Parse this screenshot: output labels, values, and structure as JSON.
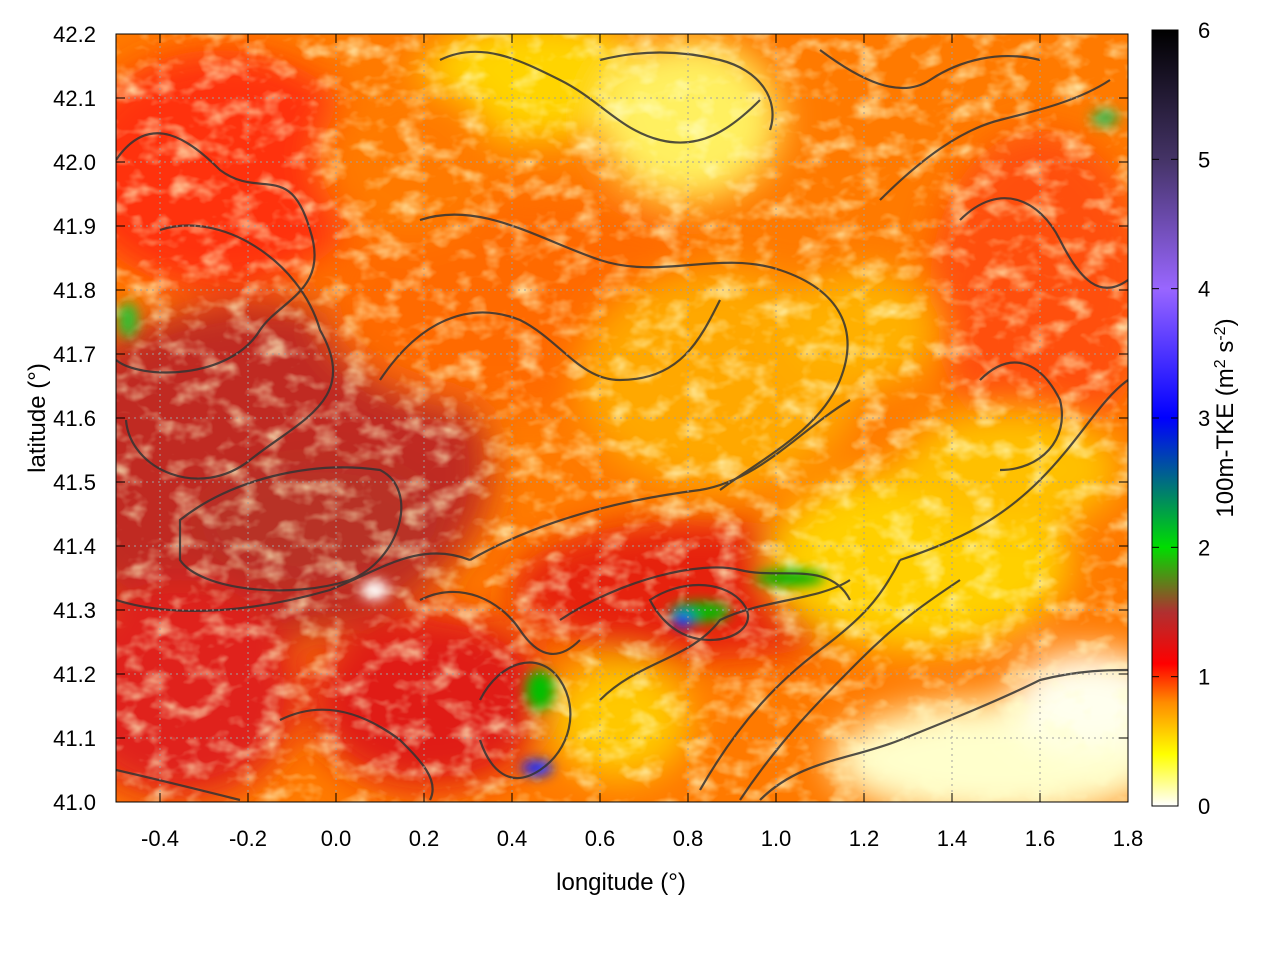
{
  "chart_data": {
    "type": "heatmap",
    "xlabel": "longitude (°)",
    "ylabel": "latitude (°)",
    "colorbar_label": "100m-TKE (m² s⁻²)",
    "colorbar_label_parts": {
      "main": "100m-TKE (m",
      "sup1": "2",
      "mid": " s",
      "sup2": "-2",
      "end": ")"
    },
    "xlim": [
      -0.5,
      1.8
    ],
    "ylim": [
      41.0,
      42.2
    ],
    "x_ticks": [
      "-0.4",
      "-0.2",
      "0.0",
      "0.2",
      "0.4",
      "0.6",
      "0.8",
      "1.0",
      "1.2",
      "1.4",
      "1.6",
      "1.8"
    ],
    "x_tick_values": [
      -0.4,
      -0.2,
      0.0,
      0.2,
      0.4,
      0.6,
      0.8,
      1.0,
      1.2,
      1.4,
      1.6,
      1.8
    ],
    "y_ticks": [
      "41.0",
      "41.1",
      "41.2",
      "41.3",
      "41.4",
      "41.5",
      "41.6",
      "41.7",
      "41.8",
      "41.9",
      "42.0",
      "42.1",
      "42.2"
    ],
    "y_tick_values": [
      41.0,
      41.1,
      41.2,
      41.3,
      41.4,
      41.5,
      41.6,
      41.7,
      41.8,
      41.9,
      42.0,
      42.1,
      42.2
    ],
    "colorbar_ticks": [
      "0",
      "1",
      "2",
      "3",
      "4",
      "5",
      "6"
    ],
    "colorbar_tick_values": [
      0,
      1,
      2,
      3,
      4,
      5,
      6
    ],
    "colorbar_range": [
      0,
      6
    ],
    "colormap": [
      {
        "value": 0.0,
        "color": "#ffffff"
      },
      {
        "value": 0.4,
        "color": "#ffff00"
      },
      {
        "value": 0.8,
        "color": "#ff8c00"
      },
      {
        "value": 1.1,
        "color": "#ff0000"
      },
      {
        "value": 1.5,
        "color": "#b03030"
      },
      {
        "value": 2.0,
        "color": "#00dd00"
      },
      {
        "value": 3.0,
        "color": "#0000ff"
      },
      {
        "value": 4.0,
        "color": "#9966ff"
      },
      {
        "value": 5.0,
        "color": "#443366"
      },
      {
        "value": 6.0,
        "color": "#000000"
      }
    ],
    "field_description_regions": [
      {
        "lon": [
          -0.5,
          0.45
        ],
        "lat": [
          41.3,
          41.75
        ],
        "tke": 1.4
      },
      {
        "lon": [
          -0.5,
          0.2
        ],
        "lat": [
          41.0,
          41.3
        ],
        "tke": 1.0
      },
      {
        "lon": [
          0.3,
          0.9
        ],
        "lat": [
          41.6,
          41.95
        ],
        "tke": 0.8
      },
      {
        "lon": [
          0.85,
          1.3
        ],
        "lat": [
          41.5,
          41.85
        ],
        "tke": 0.5
      },
      {
        "lon": [
          0.55,
          1.15
        ],
        "lat": [
          41.25,
          41.4
        ],
        "tke": 1.2
      },
      {
        "lon": [
          0.75,
          0.82
        ],
        "lat": [
          41.27,
          41.32
        ],
        "tke": 3.0
      },
      {
        "lon": [
          0.42,
          0.48
        ],
        "lat": [
          41.15,
          41.2
        ],
        "tke": 2.0
      },
      {
        "lon": [
          0.4,
          0.45
        ],
        "lat": [
          41.02,
          41.06
        ],
        "tke": 3.0
      },
      {
        "lon": [
          1.2,
          1.8
        ],
        "lat": [
          41.0,
          41.15
        ],
        "tke": 0.1
      },
      {
        "lon": [
          0.1,
          0.6
        ],
        "lat": [
          42.0,
          42.2
        ],
        "tke": 0.3
      },
      {
        "lon": [
          1.3,
          1.8
        ],
        "lat": [
          41.6,
          42.1
        ],
        "tke": 0.8
      }
    ],
    "grid": true,
    "contours": true
  }
}
